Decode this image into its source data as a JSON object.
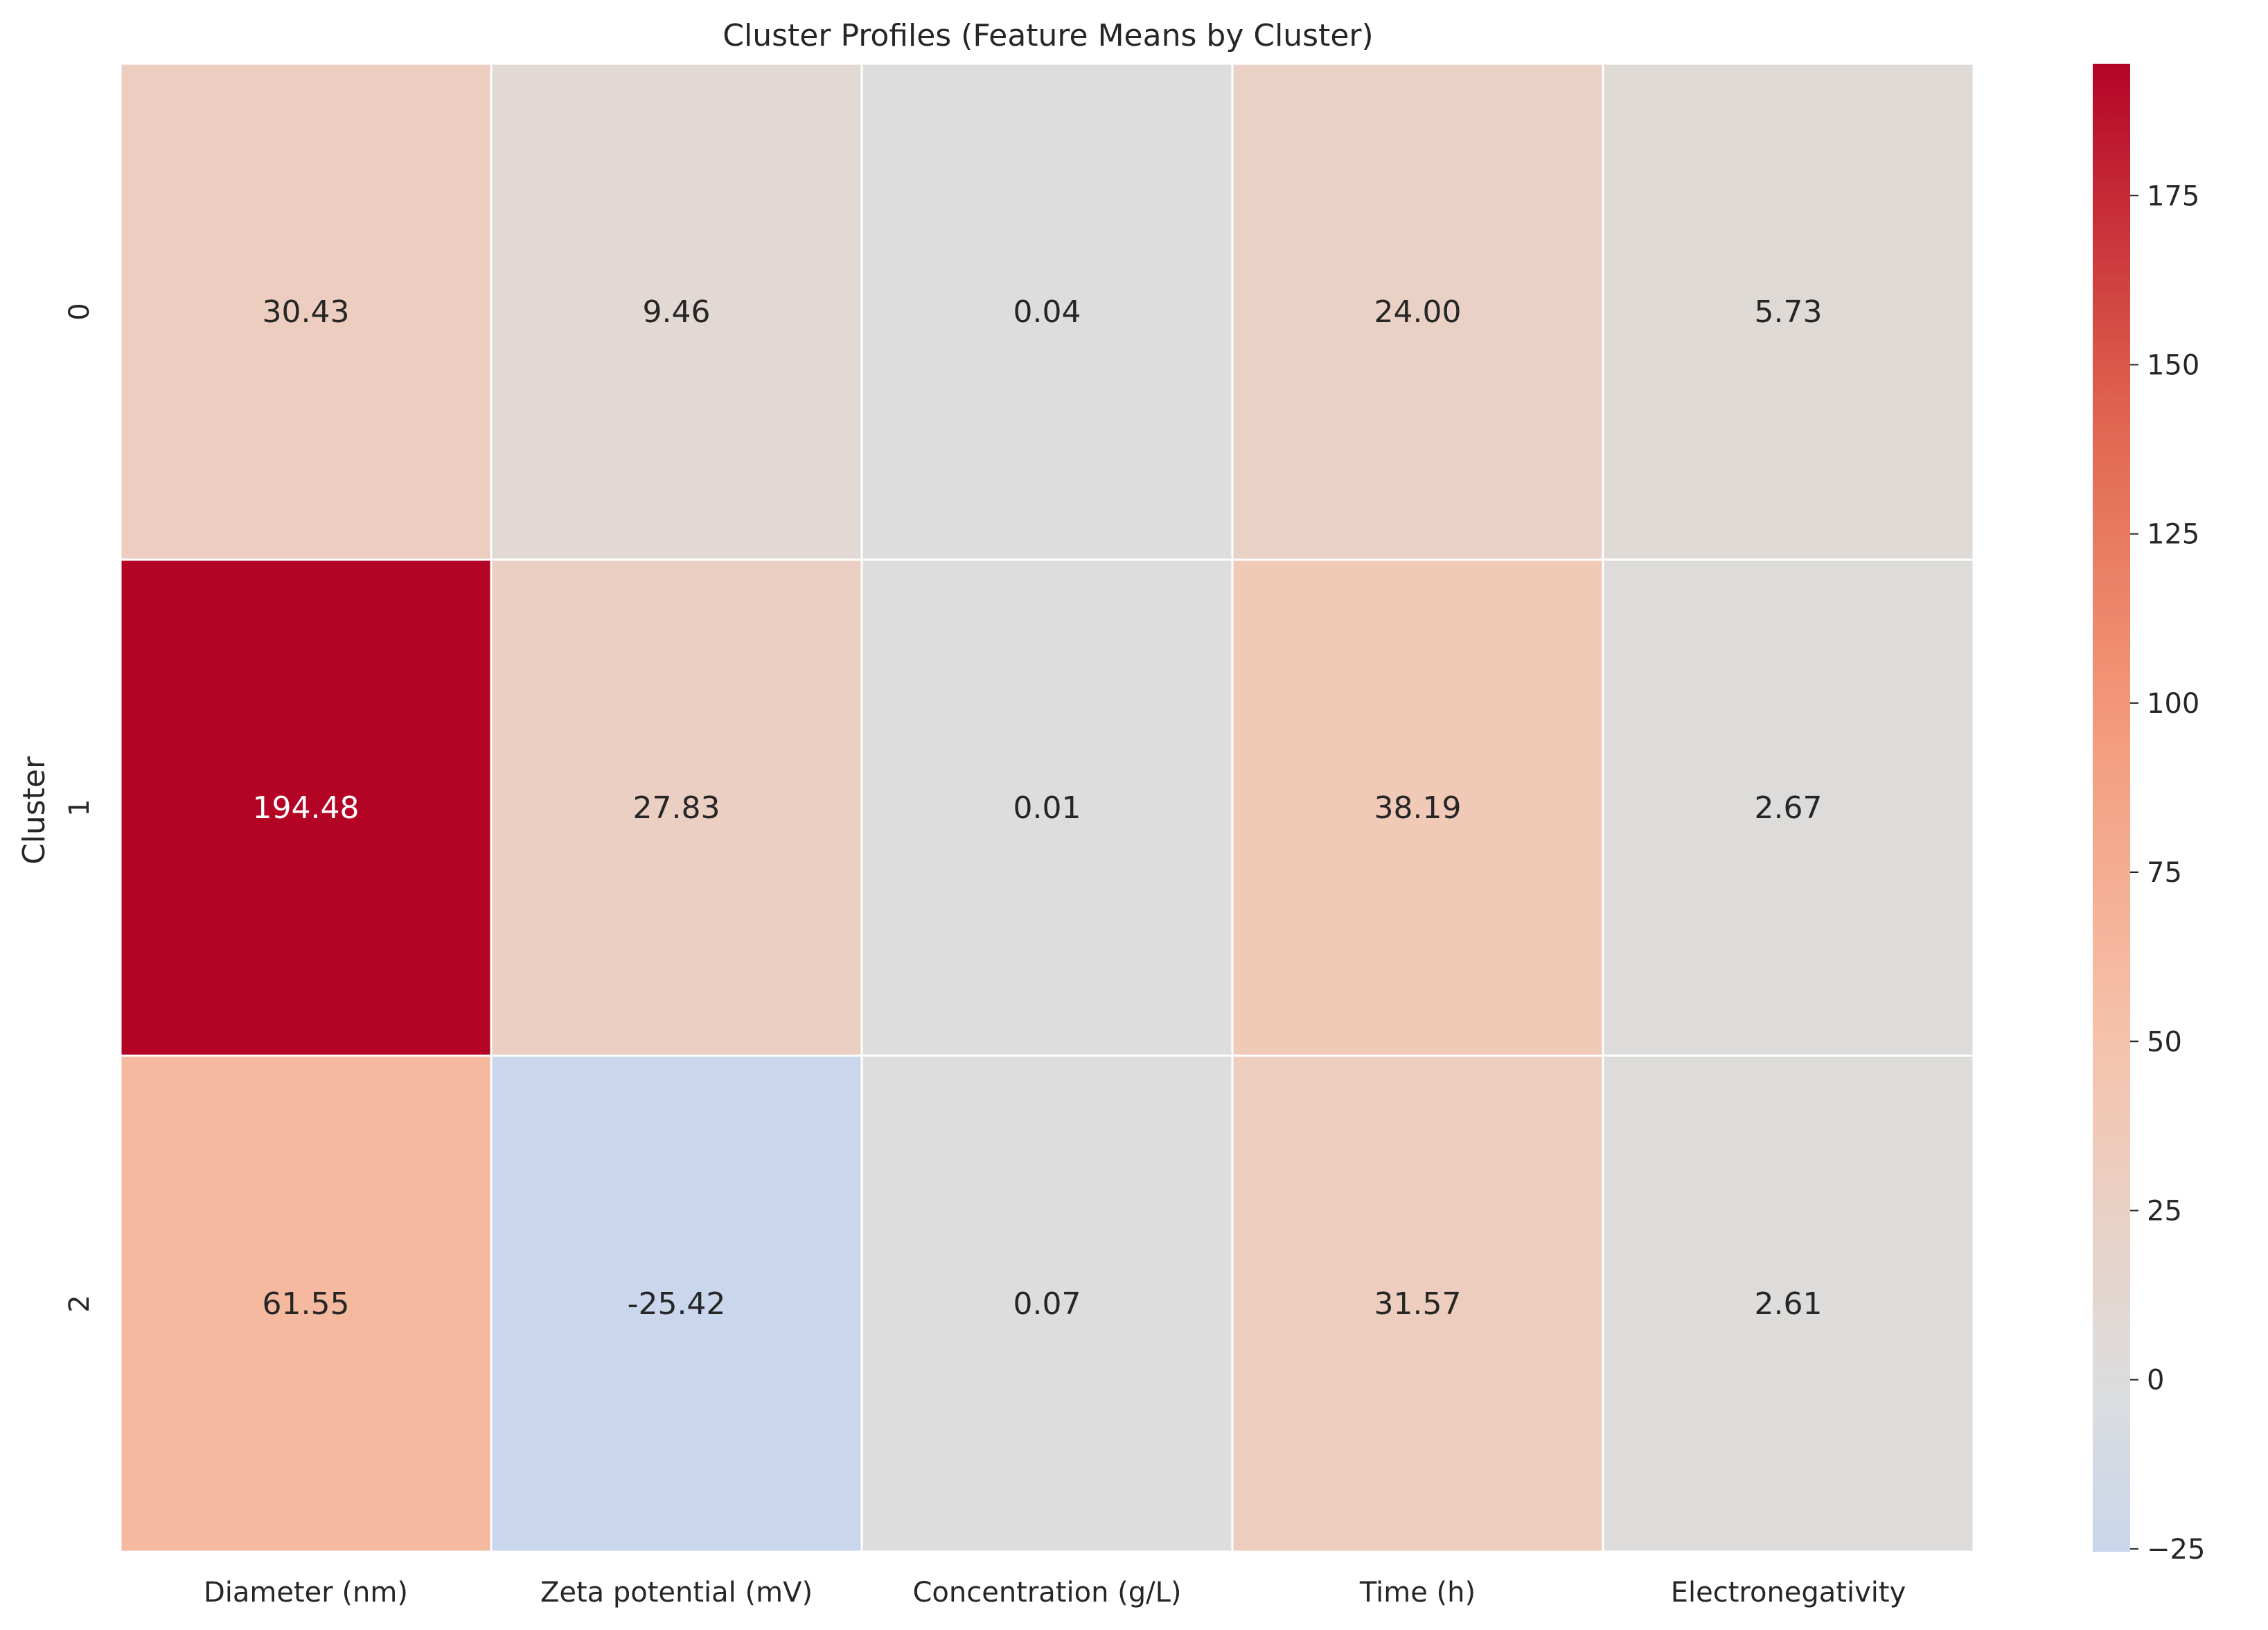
{
  "chart_data": {
    "type": "heatmap",
    "title": "Cluster Profiles (Feature Means by Cluster)",
    "xlabel": "",
    "ylabel": "Cluster",
    "columns": [
      "Diameter (nm)",
      "Zeta potential (mV)",
      "Concentration (g/L)",
      "Time (h)",
      "Electronegativity"
    ],
    "rows": [
      "0",
      "1",
      "2"
    ],
    "values": [
      [
        30.43,
        9.46,
        0.04,
        24.0,
        5.73
      ],
      [
        194.48,
        27.83,
        0.01,
        38.19,
        2.67
      ],
      [
        61.55,
        -25.42,
        0.07,
        31.57,
        2.61
      ]
    ],
    "value_labels": [
      [
        "30.43",
        "9.46",
        "0.04",
        "24.00",
        "5.73"
      ],
      [
        "194.48",
        "27.83",
        "0.01",
        "38.19",
        "2.67"
      ],
      [
        "61.55",
        "-25.42",
        "0.07",
        "31.57",
        "2.61"
      ]
    ],
    "colormap": "coolwarm",
    "color_center": 0,
    "color_range": [
      -25.42,
      194.48
    ],
    "colorbar_ticks": [
      "−25",
      "0",
      "25",
      "50",
      "75",
      "100",
      "125",
      "150",
      "175"
    ],
    "colorbar_tick_values": [
      -25,
      0,
      25,
      50,
      75,
      100,
      125,
      150,
      175
    ],
    "grid": false,
    "legend": "colorbar-right"
  }
}
